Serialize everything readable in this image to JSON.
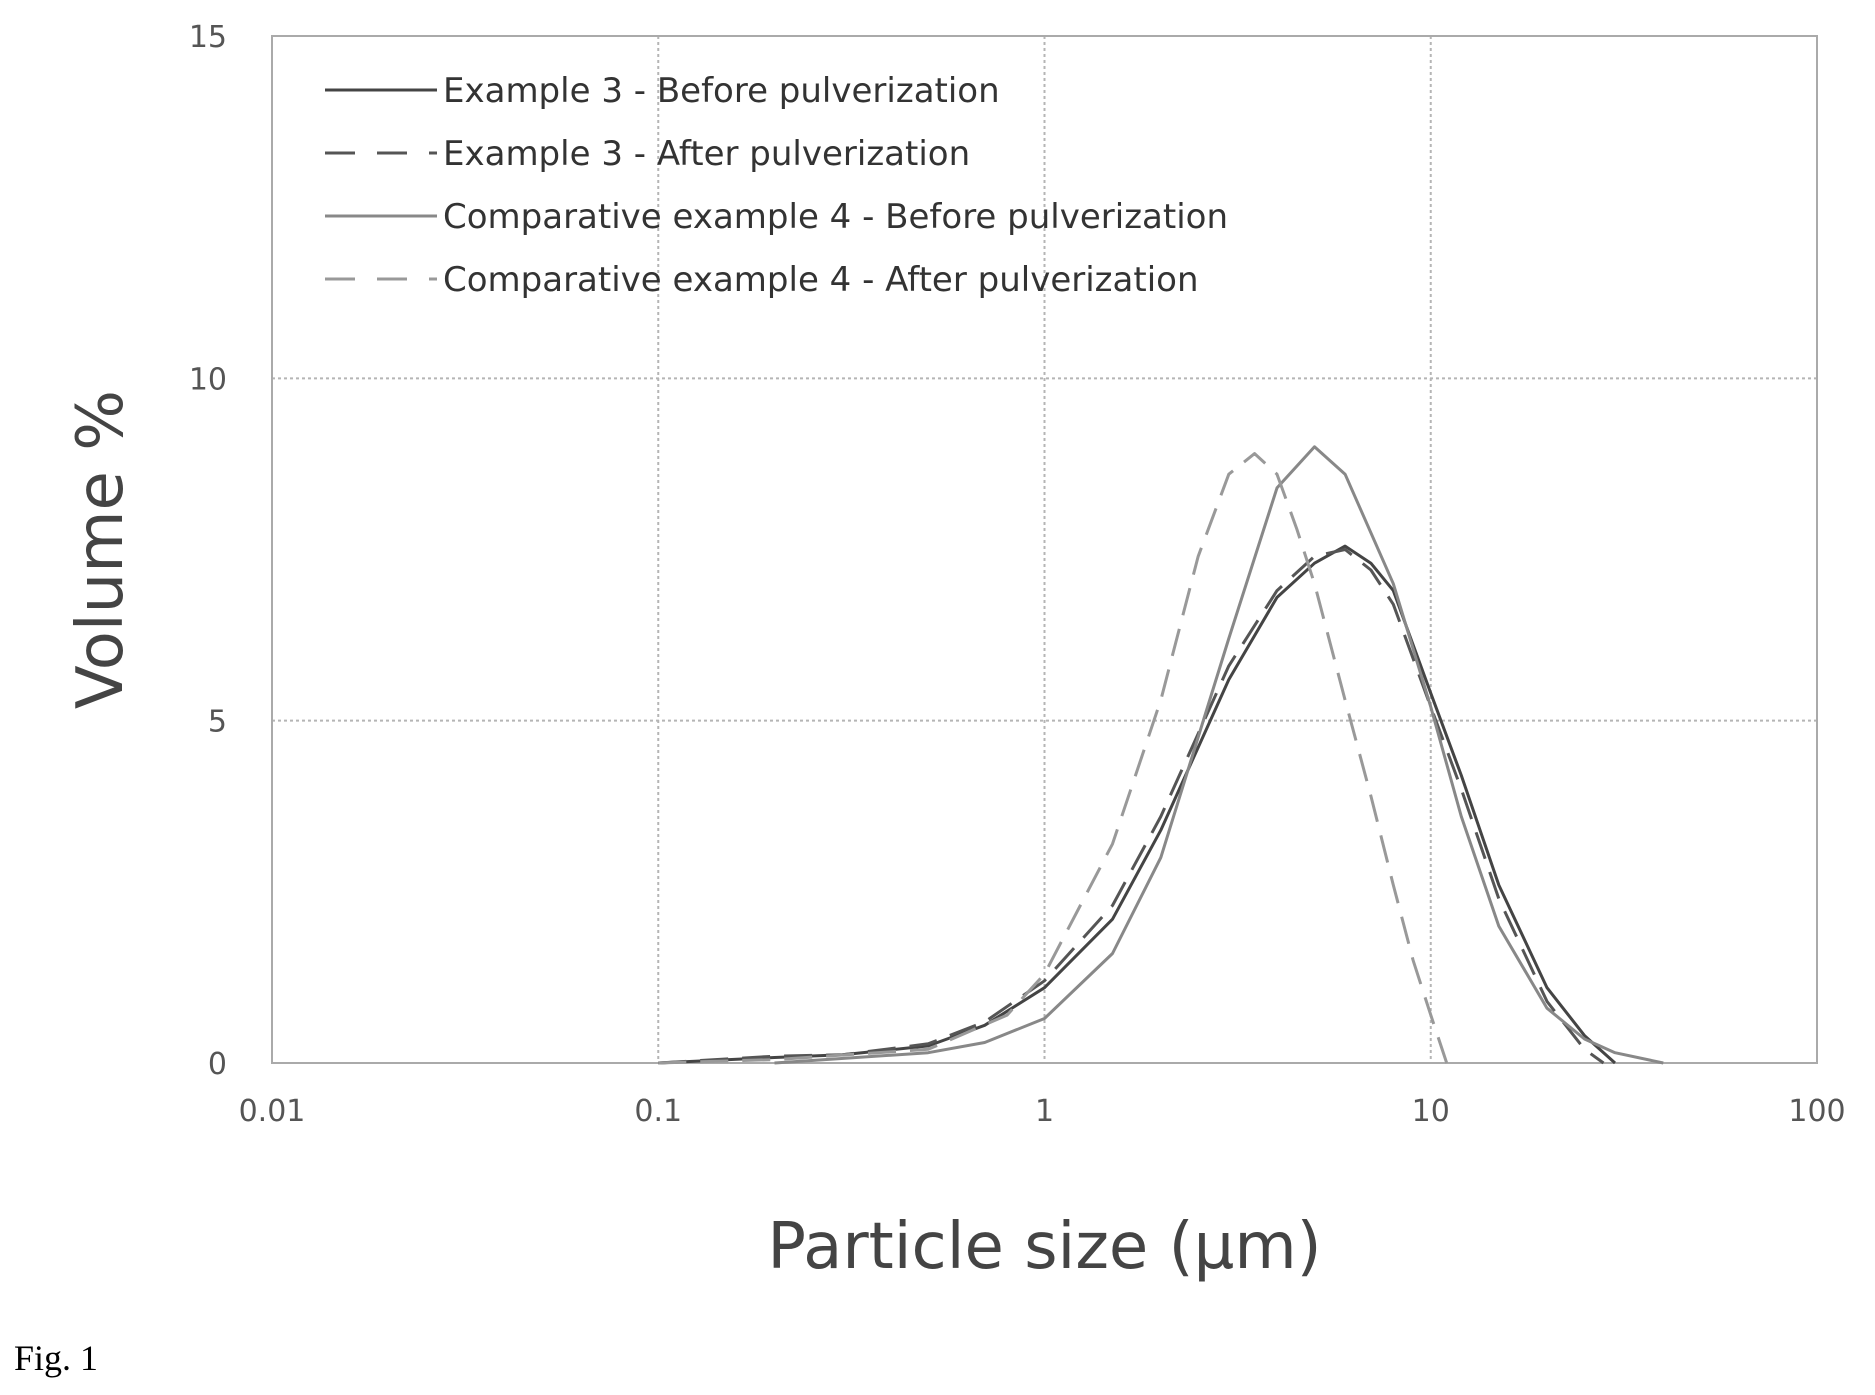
{
  "chart_data": {
    "type": "line",
    "xlabel": "Particle size (μm)",
    "ylabel": "Volume %",
    "x_scale": "log",
    "xlim": [
      0.01,
      100
    ],
    "ylim": [
      0,
      15
    ],
    "x_ticks": [
      {
        "value": 0.01,
        "label": "0.01"
      },
      {
        "value": 0.1,
        "label": "0.1"
      },
      {
        "value": 1,
        "label": "1"
      },
      {
        "value": 10,
        "label": "10"
      },
      {
        "value": 100,
        "label": "100"
      }
    ],
    "y_ticks": [
      {
        "value": 0,
        "label": "0"
      },
      {
        "value": 5,
        "label": "5"
      },
      {
        "value": 10,
        "label": "10"
      },
      {
        "value": 15,
        "label": "15"
      }
    ],
    "grid": true,
    "legend_position": "top-left",
    "series": [
      {
        "name": "Example 3 - Before pulverization",
        "color": "#444444",
        "dash": "solid",
        "points": [
          [
            0.1,
            0
          ],
          [
            0.2,
            0.08
          ],
          [
            0.3,
            0.12
          ],
          [
            0.5,
            0.25
          ],
          [
            0.7,
            0.55
          ],
          [
            1,
            1.1
          ],
          [
            1.5,
            2.1
          ],
          [
            2,
            3.4
          ],
          [
            3,
            5.6
          ],
          [
            4,
            6.8
          ],
          [
            5,
            7.3
          ],
          [
            6,
            7.55
          ],
          [
            7,
            7.3
          ],
          [
            8,
            6.9
          ],
          [
            10,
            5.4
          ],
          [
            12,
            4.2
          ],
          [
            15,
            2.6
          ],
          [
            20,
            1.1
          ],
          [
            25,
            0.4
          ],
          [
            30,
            0
          ]
        ]
      },
      {
        "name": "Example 3 - After pulverization",
        "color": "#555555",
        "dash": "long-dash",
        "points": [
          [
            0.1,
            0
          ],
          [
            0.2,
            0.1
          ],
          [
            0.3,
            0.12
          ],
          [
            0.5,
            0.28
          ],
          [
            0.7,
            0.6
          ],
          [
            1,
            1.2
          ],
          [
            1.5,
            2.3
          ],
          [
            2,
            3.6
          ],
          [
            3,
            5.8
          ],
          [
            4,
            6.9
          ],
          [
            5,
            7.4
          ],
          [
            6,
            7.5
          ],
          [
            7,
            7.2
          ],
          [
            8,
            6.7
          ],
          [
            10,
            5.2
          ],
          [
            12,
            4.0
          ],
          [
            15,
            2.4
          ],
          [
            20,
            0.9
          ],
          [
            25,
            0.2
          ],
          [
            28,
            0
          ]
        ]
      },
      {
        "name": "Comparative example 4 - Before pulverization",
        "color": "#888888",
        "dash": "solid",
        "points": [
          [
            0.2,
            0
          ],
          [
            0.5,
            0.15
          ],
          [
            0.7,
            0.3
          ],
          [
            1,
            0.65
          ],
          [
            1.5,
            1.6
          ],
          [
            2,
            3.0
          ],
          [
            3,
            6.2
          ],
          [
            4,
            8.4
          ],
          [
            5,
            9.0
          ],
          [
            6,
            8.6
          ],
          [
            8,
            7.0
          ],
          [
            10,
            5.2
          ],
          [
            12,
            3.6
          ],
          [
            15,
            2.0
          ],
          [
            20,
            0.8
          ],
          [
            25,
            0.35
          ],
          [
            30,
            0.15
          ],
          [
            40,
            0
          ]
        ]
      },
      {
        "name": "Comparative example 4 - After pulverization",
        "color": "#999999",
        "dash": "long-dash",
        "points": [
          [
            0.1,
            0
          ],
          [
            0.2,
            0.05
          ],
          [
            0.5,
            0.2
          ],
          [
            0.8,
            0.7
          ],
          [
            1,
            1.3
          ],
          [
            1.5,
            3.2
          ],
          [
            2,
            5.3
          ],
          [
            2.5,
            7.4
          ],
          [
            3,
            8.6
          ],
          [
            3.5,
            8.9
          ],
          [
            4,
            8.6
          ],
          [
            4.5,
            7.8
          ],
          [
            5,
            7.0
          ],
          [
            6,
            5.3
          ],
          [
            7,
            3.9
          ],
          [
            8,
            2.6
          ],
          [
            9,
            1.5
          ],
          [
            10,
            0.7
          ],
          [
            11,
            0
          ]
        ]
      }
    ]
  },
  "caption": "Fig. 1"
}
